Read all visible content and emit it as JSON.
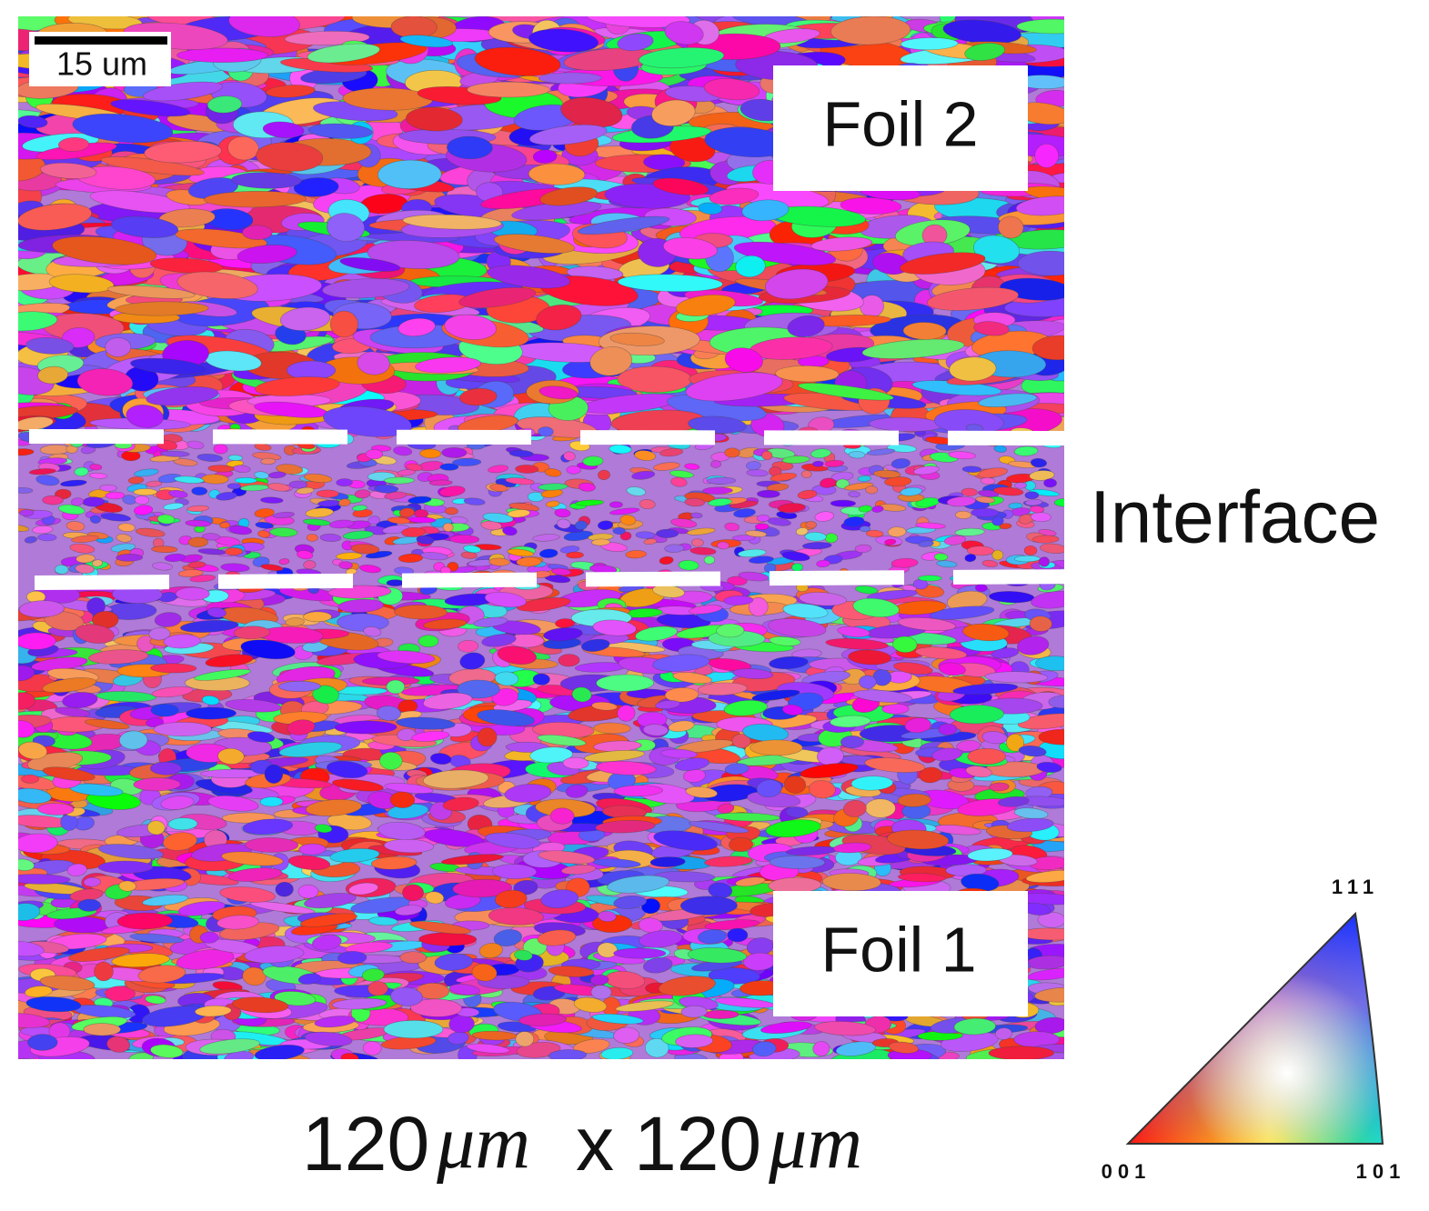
{
  "scale_bar": "15 um",
  "labels": {
    "top": "Foil 2",
    "bottom": "Foil 1",
    "middle": "Interface"
  },
  "caption": [
    "120",
    "μm",
    "x",
    "120",
    "μm"
  ],
  "legend": {
    "top": "111",
    "left": "001",
    "right": "101"
  }
}
